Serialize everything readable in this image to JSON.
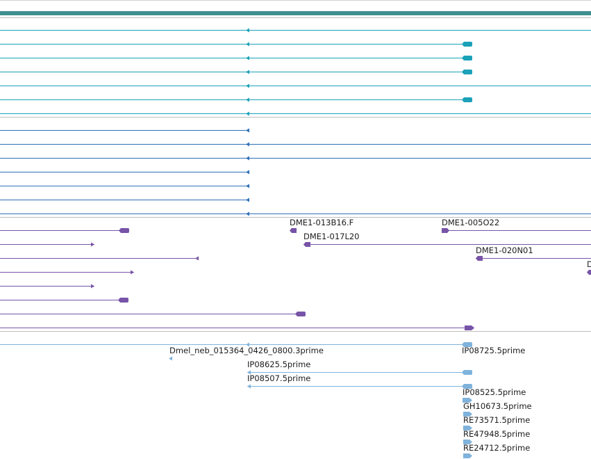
{
  "colors": {
    "header_bar": "#3f8f8f",
    "track_divider": "#bdbdbd",
    "mrna": "#1ba1b8",
    "cdna": "#2f6fb7",
    "bac_end": "#7754a8",
    "est": "#7fb3dc"
  },
  "tracks": [
    {
      "id": "track-mrna",
      "feature_type": "transcript",
      "color_key": "mrna",
      "features": [
        {
          "label": "",
          "start": 0,
          "end": 851,
          "arrow": "left-mid",
          "block": null
        },
        {
          "label": "",
          "start": 0,
          "end": 680,
          "arrow": "left-mid",
          "block": "right-rounded"
        },
        {
          "label": "",
          "start": 0,
          "end": 680,
          "arrow": "left-mid",
          "block": "right-rounded"
        },
        {
          "label": "",
          "start": 0,
          "end": 680,
          "arrow": "left-mid",
          "block": "right-rounded"
        },
        {
          "label": "",
          "start": 0,
          "end": 851,
          "arrow": "left-mid",
          "block": null
        },
        {
          "label": "",
          "start": 0,
          "end": 680,
          "arrow": "left-mid",
          "block": "right-rounded"
        },
        {
          "label": "",
          "start": 0,
          "end": 851,
          "arrow": "left-mid",
          "block": null
        }
      ]
    },
    {
      "id": "track-cdna",
      "feature_type": "cdna",
      "color_key": "cdna",
      "features": [
        {
          "label": "",
          "start": 0,
          "end": 359,
          "arrow": "left-end",
          "block": null
        },
        {
          "label": "",
          "start": 0,
          "end": 851,
          "arrow": "left-mid",
          "block": null
        },
        {
          "label": "",
          "start": 0,
          "end": 851,
          "arrow": "left-mid",
          "block": null
        },
        {
          "label": "",
          "start": 0,
          "end": 359,
          "arrow": "left-end",
          "block": null
        },
        {
          "label": "",
          "start": 0,
          "end": 359,
          "arrow": "left-end",
          "block": null
        },
        {
          "label": "",
          "start": 0,
          "end": 359,
          "arrow": "left-end",
          "block": null
        },
        {
          "label": "",
          "start": 0,
          "end": 851,
          "arrow": "left-mid",
          "block": null
        }
      ]
    },
    {
      "id": "track-bac-ends",
      "feature_type": "bac_end",
      "color_key": "bac_end",
      "features": [
        {
          "label": "",
          "start": 0,
          "end": 186,
          "arrow": null,
          "block": "right-rounded"
        },
        {
          "label": "DME1-013B16.F",
          "start": 417,
          "end": 427,
          "arrow": null,
          "block": "left-point"
        },
        {
          "label": "DME1-005O22",
          "start": 636,
          "end": 851,
          "arrow": null,
          "block": "left-point-right"
        },
        {
          "label": "",
          "start": 0,
          "end": 136,
          "arrow": "right-end",
          "block": null
        },
        {
          "label": "DME1-017L20",
          "start": 437,
          "end": 851,
          "arrow": null,
          "block": "left-point"
        },
        {
          "label": "",
          "start": 0,
          "end": 286,
          "arrow": "left-end",
          "block": null
        },
        {
          "label": "DME1-020N01",
          "start": 685,
          "end": 851,
          "arrow": null,
          "block": "left-point"
        },
        {
          "label": "",
          "start": 0,
          "end": 193,
          "arrow": "right-end",
          "block": null
        },
        {
          "label": "D",
          "start": 845,
          "end": 851,
          "arrow": null,
          "block": "left-point"
        },
        {
          "label": "",
          "start": 0,
          "end": 136,
          "arrow": "right-end",
          "block": null
        },
        {
          "label": "",
          "start": 0,
          "end": 185,
          "arrow": "right-end",
          "block": "right-rounded"
        },
        {
          "label": "",
          "start": 0,
          "end": 440,
          "arrow": null,
          "block": "right-rounded"
        },
        {
          "label": "",
          "start": 0,
          "end": 683,
          "arrow": null,
          "block": "right-point"
        }
      ]
    },
    {
      "id": "track-est",
      "feature_type": "est",
      "color_key": "est",
      "features": [
        {
          "label": "",
          "start": 0,
          "end": 680,
          "arrow": "left-mid",
          "block": "right-rounded"
        },
        {
          "label": "IP08725.5prime",
          "start": 665,
          "end": 680,
          "arrow": null,
          "block": null
        },
        {
          "label": "Dmel_neb_015364_0426_0800.3prime",
          "start": 243,
          "end": 249,
          "arrow": "left-only",
          "block": null
        },
        {
          "label": "IP08625.5prime",
          "start": 356,
          "end": 680,
          "arrow": "left-end",
          "block": "right-rounded"
        },
        {
          "label": "IP08507.5prime",
          "start": 356,
          "end": 680,
          "arrow": "left-end",
          "block": "right-rounded"
        },
        {
          "label": "IP08525.5prime",
          "start": 666,
          "end": 680,
          "arrow": null,
          "block": "right-point"
        },
        {
          "label": "GH10673.5prime",
          "start": 667,
          "end": 680,
          "arrow": null,
          "block": "right-point"
        },
        {
          "label": "RE73571.5prime",
          "start": 667,
          "end": 680,
          "arrow": null,
          "block": "right-point"
        },
        {
          "label": "RE47948.5prime",
          "start": 667,
          "end": 680,
          "arrow": null,
          "block": "right-point"
        },
        {
          "label": "RE24712.5prime",
          "start": 667,
          "end": 680,
          "arrow": null,
          "block": "right-point"
        }
      ]
    }
  ]
}
